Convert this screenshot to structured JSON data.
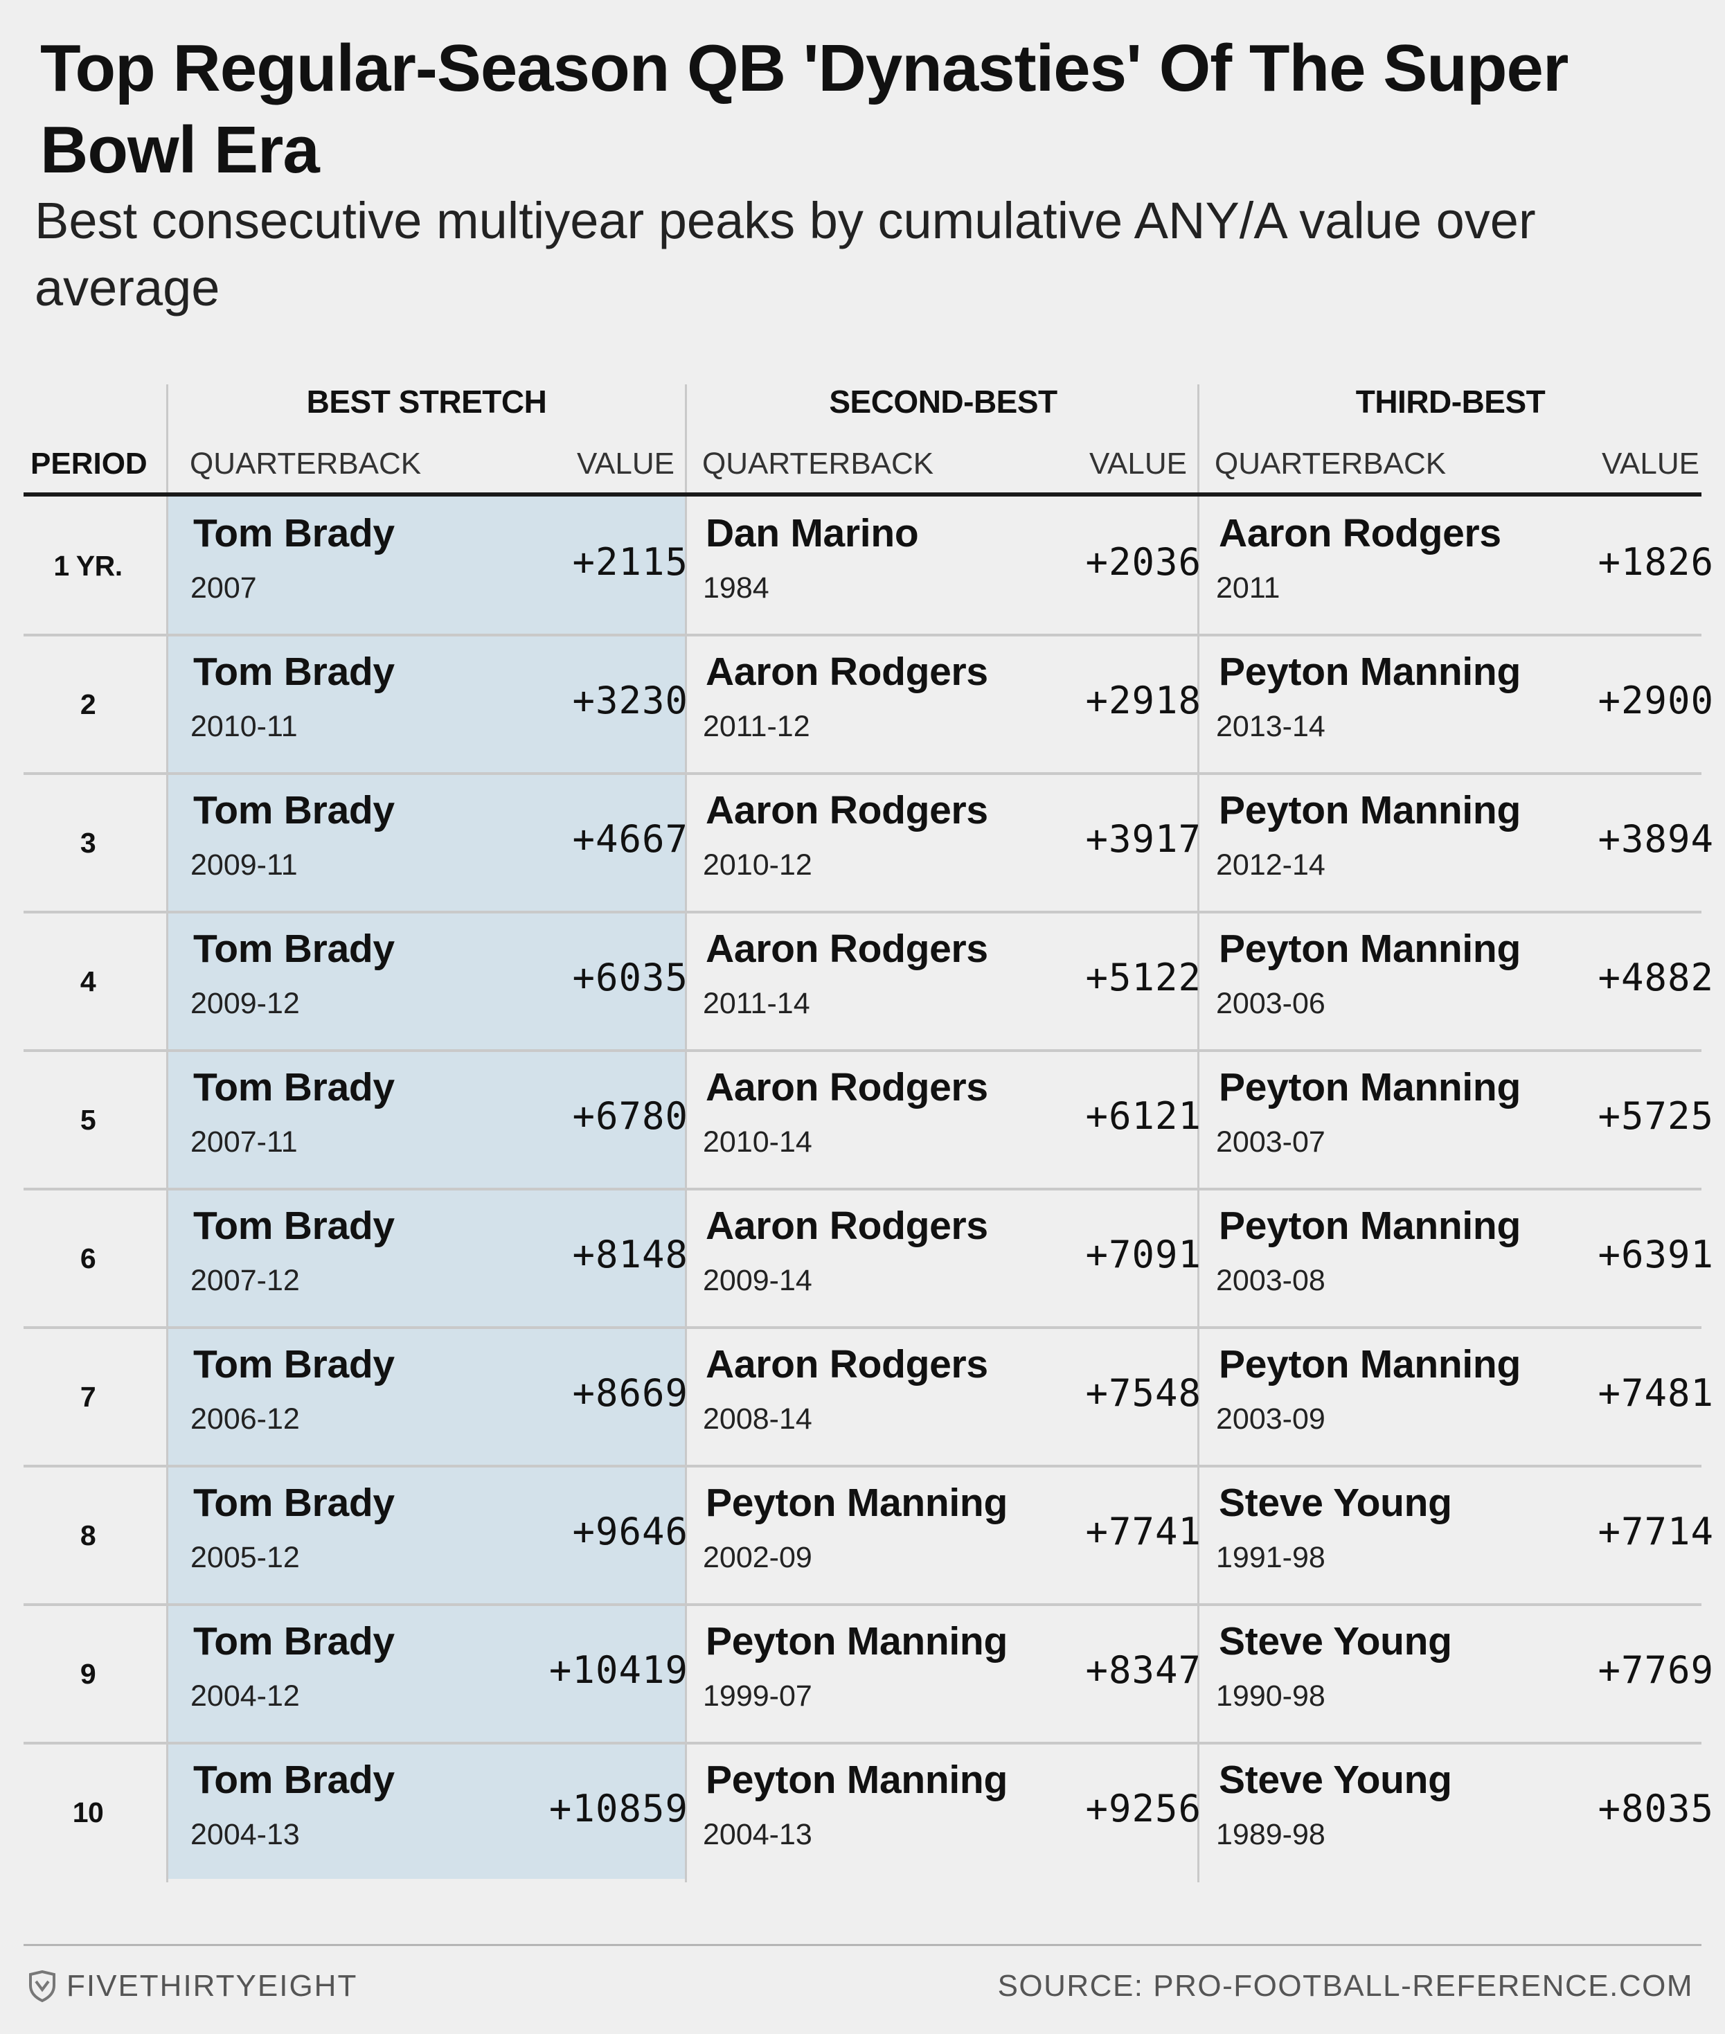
{
  "title": "Top Regular-Season QB 'Dynasties' Of The Super Bowl Era",
  "subtitle": "Best consecutive multiyear peaks by cumulative ANY/A value over average",
  "headers": {
    "period": "PERIOD",
    "groups": [
      "BEST STRETCH",
      "SECOND-BEST",
      "THIRD-BEST"
    ],
    "quarterback": "QUARTERBACK",
    "value": "VALUE"
  },
  "chart_data": {
    "type": "table",
    "title": "Top Regular-Season QB 'Dynasties' Of The Super Bowl Era",
    "columns": [
      "PERIOD",
      "BEST STRETCH",
      "SECOND-BEST",
      "THIRD-BEST"
    ],
    "rows": [
      {
        "period": "1 YR.",
        "entries": [
          {
            "qb": "Tom Brady",
            "years": "2007",
            "value": "+2115"
          },
          {
            "qb": "Dan Marino",
            "years": "1984",
            "value": "+2036"
          },
          {
            "qb": "Aaron Rodgers",
            "years": "2011",
            "value": "+1826"
          }
        ]
      },
      {
        "period": "2",
        "entries": [
          {
            "qb": "Tom Brady",
            "years": "2010-11",
            "value": "+3230"
          },
          {
            "qb": "Aaron Rodgers",
            "years": "2011-12",
            "value": "+2918"
          },
          {
            "qb": "Peyton Manning",
            "years": "2013-14",
            "value": "+2900"
          }
        ]
      },
      {
        "period": "3",
        "entries": [
          {
            "qb": "Tom Brady",
            "years": "2009-11",
            "value": "+4667"
          },
          {
            "qb": "Aaron Rodgers",
            "years": "2010-12",
            "value": "+3917"
          },
          {
            "qb": "Peyton Manning",
            "years": "2012-14",
            "value": "+3894"
          }
        ]
      },
      {
        "period": "4",
        "entries": [
          {
            "qb": "Tom Brady",
            "years": "2009-12",
            "value": "+6035"
          },
          {
            "qb": "Aaron Rodgers",
            "years": "2011-14",
            "value": "+5122"
          },
          {
            "qb": "Peyton Manning",
            "years": "2003-06",
            "value": "+4882"
          }
        ]
      },
      {
        "period": "5",
        "entries": [
          {
            "qb": "Tom Brady",
            "years": "2007-11",
            "value": "+6780"
          },
          {
            "qb": "Aaron Rodgers",
            "years": "2010-14",
            "value": "+6121"
          },
          {
            "qb": "Peyton Manning",
            "years": "2003-07",
            "value": "+5725"
          }
        ]
      },
      {
        "period": "6",
        "entries": [
          {
            "qb": "Tom Brady",
            "years": "2007-12",
            "value": "+8148"
          },
          {
            "qb": "Aaron Rodgers",
            "years": "2009-14",
            "value": "+7091"
          },
          {
            "qb": "Peyton Manning",
            "years": "2003-08",
            "value": "+6391"
          }
        ]
      },
      {
        "period": "7",
        "entries": [
          {
            "qb": "Tom Brady",
            "years": "2006-12",
            "value": "+8669"
          },
          {
            "qb": "Aaron Rodgers",
            "years": "2008-14",
            "value": "+7548"
          },
          {
            "qb": "Peyton Manning",
            "years": "2003-09",
            "value": "+7481"
          }
        ]
      },
      {
        "period": "8",
        "entries": [
          {
            "qb": "Tom Brady",
            "years": "2005-12",
            "value": "+9646"
          },
          {
            "qb": "Peyton Manning",
            "years": "2002-09",
            "value": "+7741"
          },
          {
            "qb": "Steve Young",
            "years": "1991-98",
            "value": "+7714"
          }
        ]
      },
      {
        "period": "9",
        "entries": [
          {
            "qb": "Tom Brady",
            "years": "2004-12",
            "value": "+10419"
          },
          {
            "qb": "Peyton Manning",
            "years": "1999-07",
            "value": "+8347"
          },
          {
            "qb": "Steve Young",
            "years": "1990-98",
            "value": "+7769"
          }
        ]
      },
      {
        "period": "10",
        "entries": [
          {
            "qb": "Tom Brady",
            "years": "2004-13",
            "value": "+10859"
          },
          {
            "qb": "Peyton Manning",
            "years": "2004-13",
            "value": "+9256"
          },
          {
            "qb": "Steve Young",
            "years": "1989-98",
            "value": "+8035"
          }
        ]
      }
    ]
  },
  "colors": {
    "best_highlight": "#d3e1ea",
    "background": "#efefef",
    "rule": "#c9c9c9"
  },
  "footer": {
    "logo_icon": "fivethirtyeight-logo-icon",
    "brand": "FIVETHIRTYEIGHT",
    "source": "SOURCE: PRO-FOOTBALL-REFERENCE.COM"
  }
}
